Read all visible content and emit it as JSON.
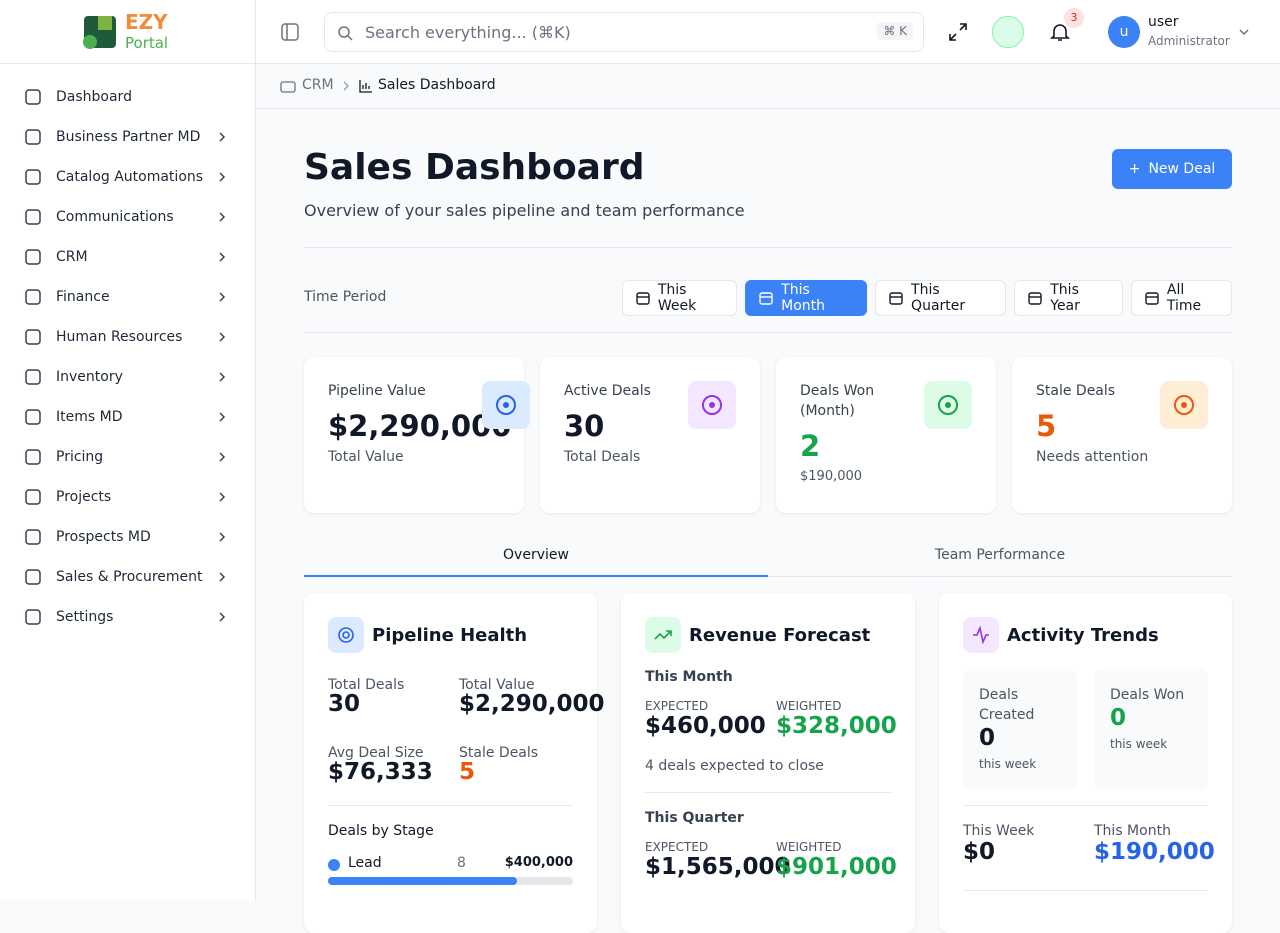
{
  "logo": {
    "brand": "EZY",
    "product": "Portal"
  },
  "sidebar": {
    "items": [
      "Dashboard",
      "Business Partner MD",
      "Catalog Automations",
      "Communications",
      "CRM",
      "Finance",
      "Human Resources",
      "Inventory",
      "Items MD",
      "Pricing",
      "Projects",
      "Prospects MD",
      "Sales & Procurement",
      "Settings"
    ]
  },
  "topbar": {
    "search": "Search everything... (⌘K)",
    "shortcut": "⌘ K",
    "notification_count": "3",
    "user_initial": "u",
    "user_name": "user",
    "user_role": "Administrator"
  },
  "breadcrumb": [
    "CRM",
    "Sales Dashboard"
  ],
  "header": {
    "title": "Sales Dashboard",
    "subtitle": "Overview of your sales pipeline and team performance",
    "action": "New Deal"
  },
  "filters": {
    "label": "Time Period",
    "options": [
      "This Week",
      "This Month",
      "This Quarter",
      "This Year",
      "All Time"
    ],
    "selected": 1
  },
  "kpis": [
    {
      "label": "Pipeline Value",
      "value": "$2,290,000",
      "note": "Total Value"
    },
    {
      "label": "Active Deals",
      "value": "30",
      "note": "Total Deals"
    },
    {
      "label": "Deals Won (Month)",
      "value": "2",
      "note": "$190,000"
    },
    {
      "label": "Stale Deals",
      "value": "5",
      "note": "Needs attention"
    }
  ],
  "tabs": {
    "items": [
      "Overview",
      "Team Performance"
    ],
    "selected": 0
  },
  "pipeline_health": {
    "title": "Pipeline Health",
    "stats": [
      {
        "label": "Total Deals",
        "value": "30"
      },
      {
        "label": "Total Value",
        "value": "$2,290,000"
      },
      {
        "label": "Avg Deal Size",
        "value": "$76,333"
      },
      {
        "label": "Stale Deals",
        "value": "5"
      }
    ],
    "stage_heading": "Deals by Stage",
    "stages": [
      {
        "name": "Lead",
        "count": "8",
        "value": "$400,000"
      }
    ]
  },
  "revenue_forecast": {
    "title": "Revenue Forecast",
    "periods": [
      {
        "name": "This Month",
        "expected_label": "EXPECTED",
        "expected": "$460,000",
        "weighted_label": "WEIGHTED",
        "weighted": "$328,000",
        "note": "4 deals expected to close"
      },
      {
        "name": "This Quarter",
        "expected_label": "EXPECTED",
        "expected": "$1,565,000",
        "weighted_label": "WEIGHTED",
        "weighted": "$901,000"
      }
    ]
  },
  "activity_trends": {
    "title": "Activity Trends",
    "cards": [
      {
        "label": "Deals Created",
        "value": "0",
        "note": "this week"
      },
      {
        "label": "Deals Won",
        "value": "0",
        "note": "this week"
      }
    ],
    "totals": [
      {
        "label": "This Week",
        "value": "$0"
      },
      {
        "label": "This Month",
        "value": "$190,000"
      }
    ]
  }
}
